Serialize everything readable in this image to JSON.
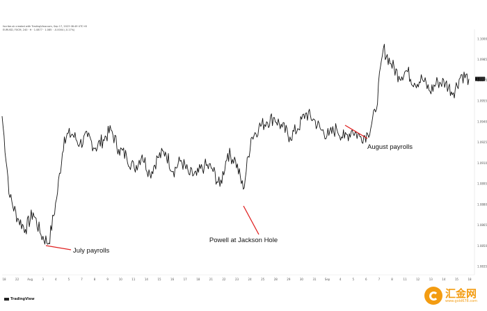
{
  "header": {
    "line1": "fxcribe.uk created with TradingView.com, Sep 17, 2023 08:49 UTC+8",
    "line2": "EURUSD, FXCM, 240 · H · 1.0877 · 1.085 · -0.0004 (-0.17%)"
  },
  "branding": {
    "logo_text": "TradingView"
  },
  "watermark": {
    "text": "汇金网",
    "url": "www.gold678.com",
    "color": "#f39c12"
  },
  "chart_data": {
    "type": "line",
    "xlabel": "",
    "ylabel": "",
    "ylim": [
      1.0835,
      1.1002
    ],
    "y_ticks": [
      "1.1000",
      "1.0985",
      "1.0970",
      "1.0955",
      "1.0940",
      "1.0925",
      "1.0910",
      "1.0895",
      "1.0880",
      "1.0865",
      "1.0850",
      "1.0835"
    ],
    "x_ticks": [
      "18",
      "22",
      "Aug",
      "3",
      "4",
      "5",
      "7",
      "8",
      "9",
      "10",
      "11",
      "14",
      "15",
      "16",
      "17",
      "18",
      "21",
      "22",
      "23",
      "24",
      "25",
      "28",
      "29",
      "30",
      "31",
      "Sep",
      "4",
      "5",
      "6",
      "7",
      "8",
      "11",
      "12",
      "13",
      "14",
      "15",
      "18"
    ],
    "last_price": "1.0860",
    "series": [
      {
        "x": [
          0,
          0.6,
          1.2,
          1.8,
          2.4,
          3,
          3.6,
          4.2,
          4.8,
          5.4,
          6,
          6.6,
          7.2,
          7.8,
          8.4,
          9,
          9.6,
          10.2,
          10.8,
          11.4,
          12,
          12.6,
          13.2,
          13.8,
          14.4,
          15,
          15.6,
          16.2,
          16.8,
          17.4,
          18,
          18.6,
          19.2,
          19.8,
          20.4,
          21,
          21.6,
          22.2,
          22.8,
          23.4,
          24,
          24.6,
          25.2,
          25.8,
          26.4,
          27,
          27.6,
          28.2,
          28.8,
          29.4,
          30,
          30.6,
          31.2,
          31.8,
          32.4,
          33,
          33.6,
          34.2,
          34.8,
          35.4,
          36
        ],
        "values": [
          1.0944,
          1.0885,
          1.087,
          1.0862,
          1.0874,
          1.0858,
          1.0852,
          1.0884,
          1.0929,
          1.0931,
          1.0924,
          1.0929,
          1.0921,
          1.0927,
          1.0934,
          1.092,
          1.0915,
          1.0906,
          1.0916,
          1.0902,
          1.0914,
          1.0918,
          1.0904,
          1.0912,
          1.0902,
          1.0901,
          1.0908,
          1.0906,
          1.0893,
          1.0917,
          1.0912,
          1.0891,
          1.0928,
          1.0936,
          1.094,
          1.0943,
          1.0936,
          1.0929,
          1.0935,
          1.0946,
          1.0942,
          1.0934,
          1.093,
          1.0935,
          1.0928,
          1.0934,
          1.0929,
          1.0931,
          1.0947,
          1.0993,
          1.0982,
          1.0973,
          1.0977,
          1.0968,
          1.0971,
          1.0962,
          1.0969,
          1.0968,
          1.0961,
          1.0974,
          1.0971
        ]
      }
    ],
    "annotations": [
      {
        "text": "July payrolls"
      },
      {
        "text": "Powell at Jackson Hole"
      },
      {
        "text": "August payrolls"
      }
    ]
  }
}
